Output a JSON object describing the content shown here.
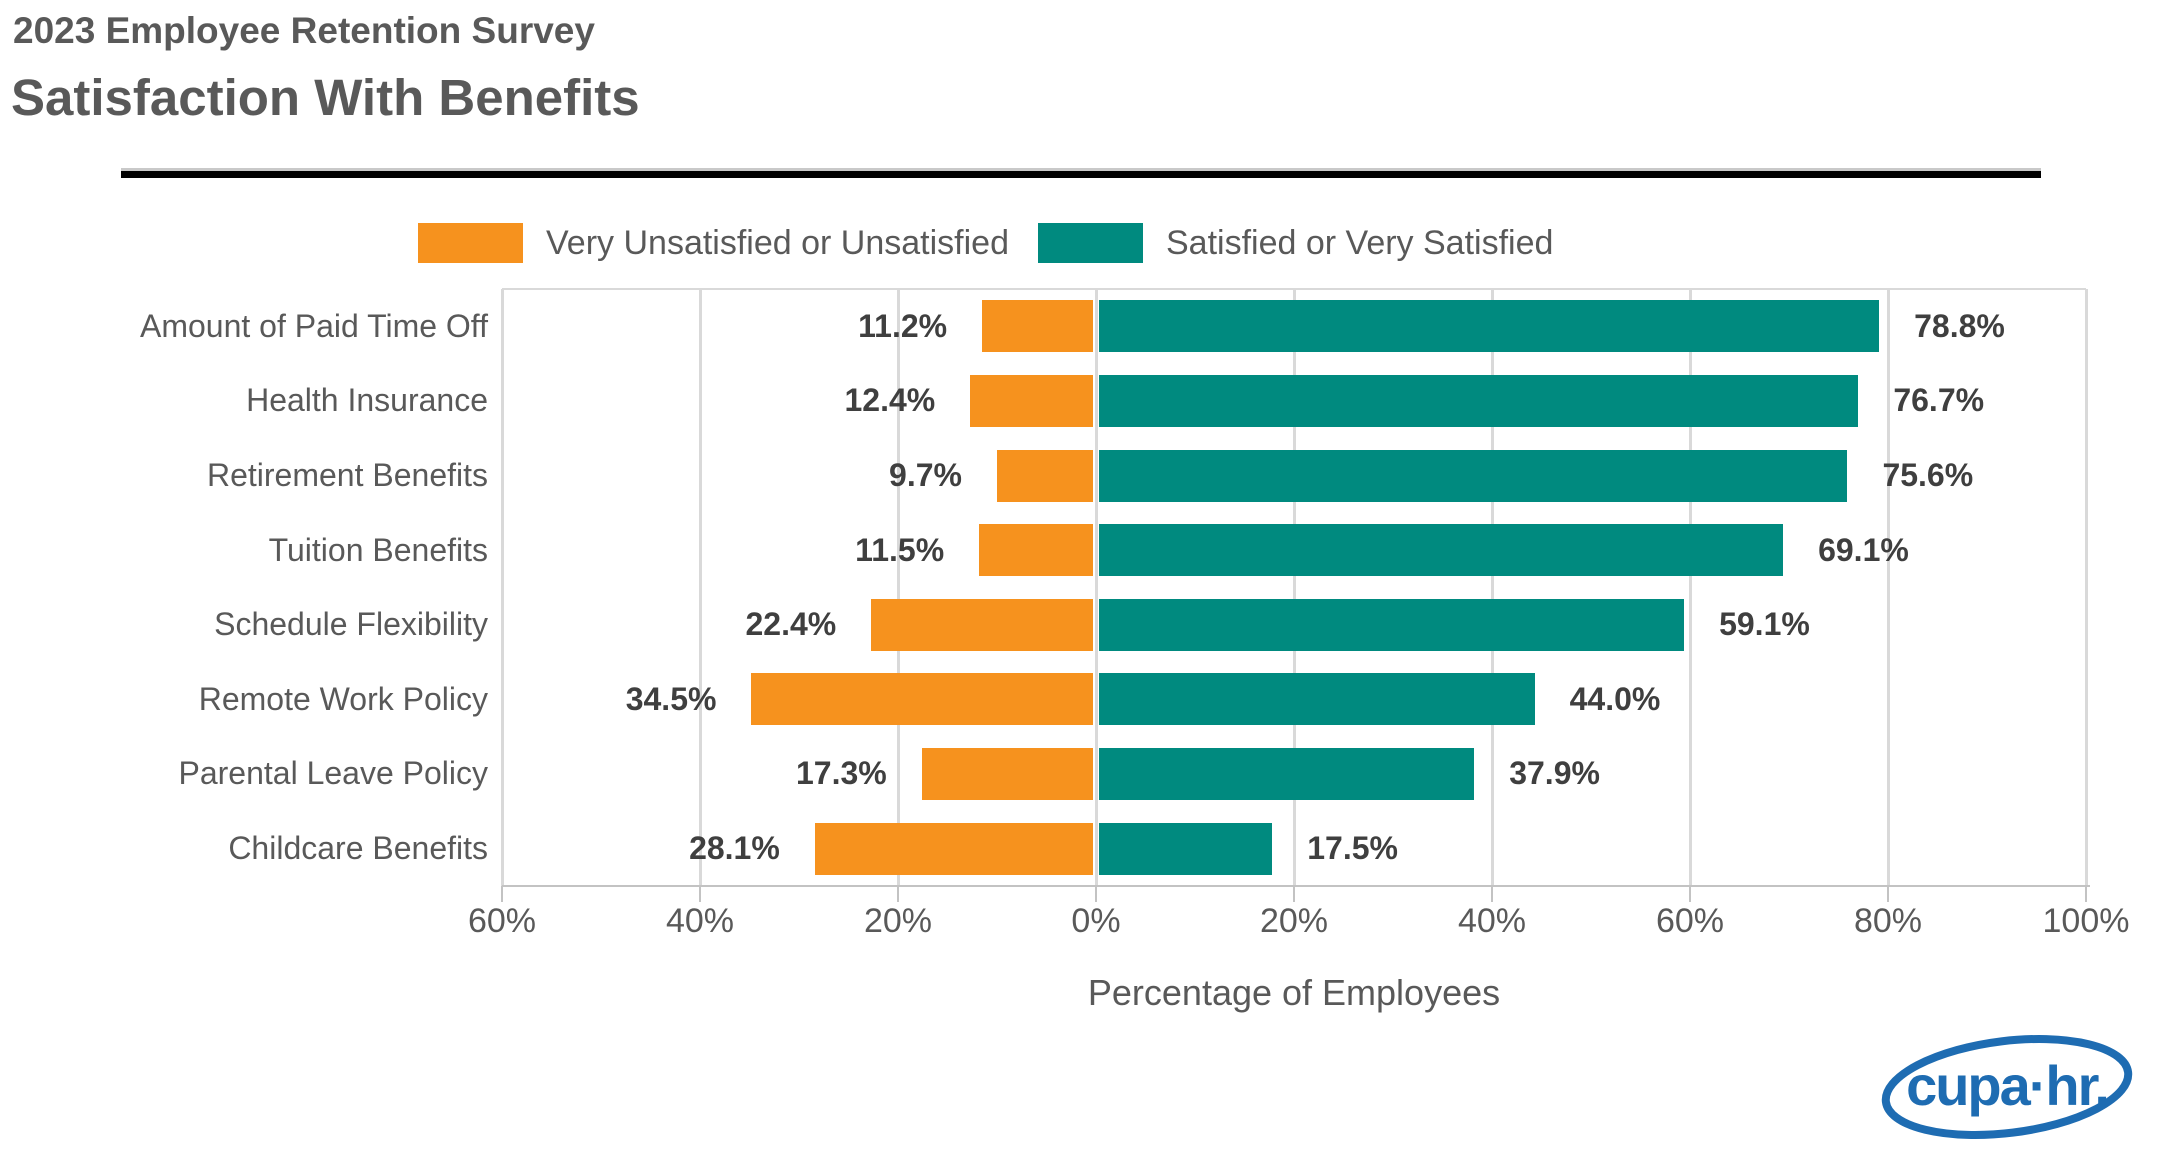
{
  "header": {
    "eyebrow": "2023 Employee Retention Survey",
    "title": "Satisfaction With Benefits"
  },
  "legend": [
    {
      "label": "Very Unsatisfied or Unsatisfied",
      "color": "#f6921e"
    },
    {
      "label": "Satisfied or Very Satisfied",
      "color": "#008a7f"
    }
  ],
  "chart_data": {
    "type": "bar",
    "variant": "horizontal-diverging",
    "title": "Satisfaction With Benefits",
    "subtitle": "2023 Employee Retention Survey",
    "categories": [
      "Amount of Paid Time Off",
      "Health Insurance",
      "Retirement Benefits",
      "Tuition Benefits",
      "Schedule Flexibility",
      "Remote Work Policy",
      "Parental Leave Policy",
      "Childcare Benefits"
    ],
    "series": [
      {
        "name": "Very Unsatisfied or Unsatisfied",
        "direction": "left",
        "color": "#f6921e",
        "values": [
          11.2,
          12.4,
          9.7,
          11.5,
          22.4,
          34.5,
          17.3,
          28.1
        ],
        "labels": [
          "11.2%",
          "12.4%",
          "9.7%",
          "11.5%",
          "22.4%",
          "34.5%",
          "17.3%",
          "28.1%"
        ]
      },
      {
        "name": "Satisfied or Very Satisfied",
        "direction": "right",
        "color": "#008a7f",
        "values": [
          78.8,
          76.7,
          75.6,
          69.1,
          59.1,
          44.0,
          37.9,
          17.5
        ],
        "labels": [
          "78.8%",
          "76.7%",
          "75.6%",
          "69.1%",
          "59.1%",
          "44.0%",
          "37.9%",
          "17.5%"
        ]
      }
    ],
    "xlabel": "Percentage of Employees",
    "x_tick_labels": [
      "60%",
      "40%",
      "20%",
      "0%",
      "20%",
      "40%",
      "60%",
      "80%",
      "100%"
    ],
    "x_tick_values": [
      -60,
      -40,
      -20,
      0,
      20,
      40,
      60,
      80,
      100
    ],
    "xlim": [
      -60,
      100
    ],
    "grid": true,
    "legend_position": "top"
  },
  "footer": {
    "logo_text": "cupa·hr.",
    "logo_color": "#1e6cb2"
  }
}
